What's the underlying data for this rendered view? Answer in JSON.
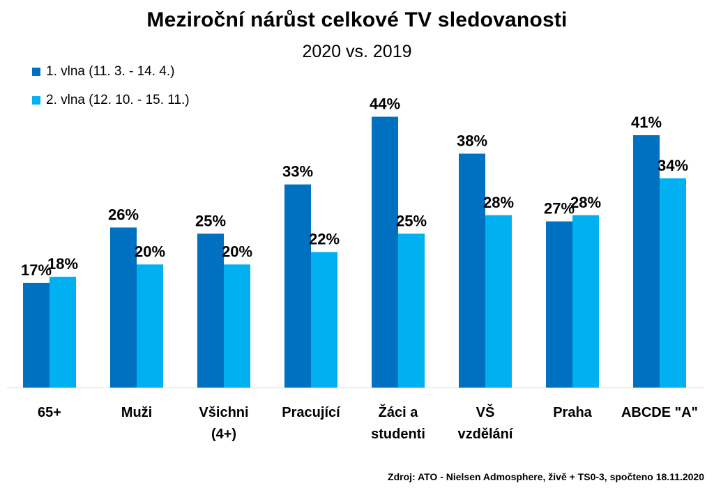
{
  "chart_data": {
    "type": "bar",
    "title": "Meziroční nárůst celkové TV sledovanosti",
    "subtitle": "2020 vs. 2019",
    "categories": [
      [
        "65+"
      ],
      [
        "Muži"
      ],
      [
        "Všichni",
        "(4+)"
      ],
      [
        "Pracující"
      ],
      [
        "Žáci a",
        "studenti"
      ],
      [
        "VŠ",
        "vzdělání"
      ],
      [
        "Praha"
      ],
      [
        "ABCDE \"A\""
      ]
    ],
    "series": [
      {
        "name": "1. vlna (11. 3. - 14. 4.)",
        "color": "#0070C0",
        "values": [
          17,
          26,
          25,
          33,
          44,
          38,
          27,
          41
        ],
        "labels": [
          "17%",
          "26%",
          "25%",
          "33%",
          "44%",
          "38%",
          "27%",
          "41%"
        ]
      },
      {
        "name": "2. vlna (12. 10. - 15. 11.)",
        "color": "#00B0F0",
        "values": [
          18,
          20,
          20,
          22,
          25,
          28,
          28,
          34
        ],
        "labels": [
          "18%",
          "20%",
          "20%",
          "22%",
          "25%",
          "28%",
          "28%",
          "34%"
        ]
      }
    ],
    "ylim": [
      0,
      44
    ],
    "grid": false,
    "legend_position": "top-left"
  },
  "source_note": "Zdroj: ATO - Nielsen Admosphere, živě + TS0-3, spočteno 18.11.2020"
}
